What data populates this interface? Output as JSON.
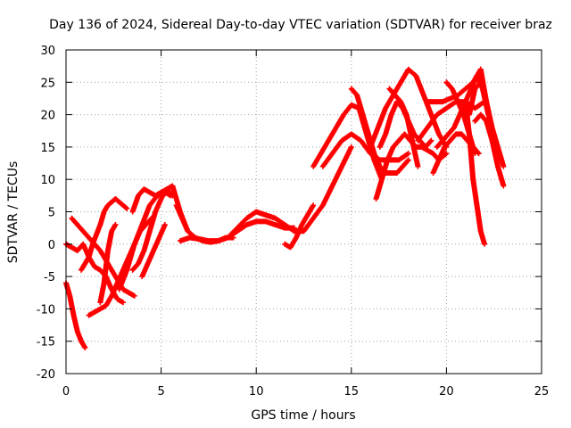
{
  "chart_data": {
    "type": "scatter",
    "title": "Day 136 of 2024, Sidereal Day-to-day VTEC variation (SDTVAR) for receiver braz",
    "xlabel": "GPS time / hours",
    "ylabel": "SDTVAR / TECUs",
    "xlim": [
      0,
      25
    ],
    "ylim": [
      -20,
      30
    ],
    "x_ticks": [
      0,
      5,
      10,
      15,
      20,
      25
    ],
    "y_ticks": [
      -20,
      -15,
      -10,
      -5,
      0,
      5,
      10,
      15,
      20,
      25,
      30
    ],
    "grid": true,
    "marker": "+",
    "color": "#ff0000",
    "series": [
      {
        "name": "s1",
        "x": [
          0,
          0.2,
          0.4,
          0.6,
          0.8,
          1.0
        ],
        "y": [
          -6,
          -8,
          -11,
          -13.5,
          -15,
          -16
        ]
      },
      {
        "name": "s2",
        "x": [
          0,
          0.3,
          0.6,
          0.9,
          1.2,
          1.5,
          1.8,
          2.1,
          2.4,
          2.7,
          3.0
        ],
        "y": [
          0,
          -0.5,
          -1,
          0,
          -2,
          -3.5,
          -4,
          -5,
          -7,
          -8.5,
          -9
        ]
      },
      {
        "name": "s3",
        "x": [
          0.3,
          0.6,
          0.9,
          1.2,
          1.5,
          1.8,
          2.1,
          2.4,
          2.7,
          3.0,
          3.3,
          3.6
        ],
        "y": [
          4,
          3,
          2,
          1,
          0,
          -1,
          -2.5,
          -4,
          -5.5,
          -7,
          -7.5,
          -8
        ]
      },
      {
        "name": "s4",
        "x": [
          0.8,
          1.0,
          1.2,
          1.4,
          1.6,
          1.8,
          2.0,
          2.2,
          2.4,
          2.6,
          2.8,
          3.0,
          3.2
        ],
        "y": [
          -4,
          -3,
          -2,
          0,
          1.5,
          3,
          5,
          6,
          6.5,
          7,
          6.5,
          6,
          5.5
        ]
      },
      {
        "name": "s5",
        "x": [
          1.2,
          1.5,
          1.8,
          2.1,
          2.4,
          2.7,
          3.0,
          3.3,
          3.6,
          3.9,
          4.2,
          4.5
        ],
        "y": [
          -11,
          -10.5,
          -10,
          -9.5,
          -8,
          -6,
          -4,
          -2,
          0,
          2,
          3,
          4
        ]
      },
      {
        "name": "s6",
        "x": [
          1.8,
          2.0,
          2.2,
          2.4,
          2.6
        ],
        "y": [
          -9,
          -6,
          -1,
          2,
          3
        ]
      },
      {
        "name": "s7",
        "x": [
          2.8,
          3.2,
          3.6,
          4.0,
          4.4,
          4.8,
          5.2,
          5.5
        ],
        "y": [
          -7,
          -4,
          0,
          3,
          6,
          7.5,
          8,
          7.5
        ]
      },
      {
        "name": "s8",
        "x": [
          3.5,
          3.8,
          4.1,
          4.4,
          4.7,
          5.0,
          5.3,
          5.6,
          6.0,
          6.4
        ],
        "y": [
          -4,
          -3,
          -1,
          2,
          5,
          7,
          8.5,
          9,
          5,
          2
        ]
      },
      {
        "name": "s9",
        "x": [
          3.5,
          3.8,
          4.1,
          4.4,
          4.7,
          5.0,
          5.3,
          5.6
        ],
        "y": [
          5,
          7.5,
          8.5,
          8,
          7.5,
          8,
          8.5,
          7.5
        ]
      },
      {
        "name": "s10",
        "x": [
          4.0,
          4.3,
          4.6,
          4.9,
          5.2
        ],
        "y": [
          -5,
          -3,
          -1,
          1,
          3
        ]
      },
      {
        "name": "s11",
        "x": [
          5.8,
          6.1,
          6.4,
          6.8,
          7.2,
          7.6,
          8.0,
          8.4,
          8.8
        ],
        "y": [
          6,
          4,
          2,
          1,
          0.5,
          0.3,
          0.5,
          1,
          1
        ]
      },
      {
        "name": "s12",
        "x": [
          6.0,
          6.5,
          7.0,
          7.5,
          8.0,
          8.5,
          9.0,
          9.5,
          10.0,
          10.5,
          11.0,
          11.5,
          12.0
        ],
        "y": [
          0.5,
          1,
          0.8,
          0.5,
          0.5,
          1,
          2,
          3,
          3.5,
          3.5,
          3,
          2.5,
          2.5
        ]
      },
      {
        "name": "s13",
        "x": [
          8.5,
          9.0,
          9.5,
          10.0,
          10.5,
          11.0,
          11.5,
          12.0,
          12.5,
          13.0,
          13.5,
          14.0,
          14.5,
          15.0
        ],
        "y": [
          1,
          2.5,
          4,
          5,
          4.5,
          4,
          3,
          2,
          2,
          4,
          6,
          9,
          12,
          15
        ]
      },
      {
        "name": "s14",
        "x": [
          11.5,
          11.8,
          12.1,
          12.4,
          12.7,
          13.0
        ],
        "y": [
          0,
          -0.5,
          1,
          3,
          4.5,
          6
        ]
      },
      {
        "name": "s15",
        "x": [
          13.0,
          13.4,
          13.8,
          14.2,
          14.6,
          15.0,
          15.4,
          15.8,
          16.2,
          16.6
        ],
        "y": [
          12,
          14,
          16,
          18,
          20,
          21.5,
          21,
          17,
          13,
          10
        ]
      },
      {
        "name": "s16",
        "x": [
          13.5,
          14.0,
          14.5,
          15.0,
          15.5,
          16.0,
          16.5,
          17.0,
          17.5,
          18.0
        ],
        "y": [
          12,
          14,
          16,
          17,
          16,
          14,
          13,
          13,
          13,
          14
        ]
      },
      {
        "name": "s17",
        "x": [
          15.0,
          15.3,
          15.6,
          15.9,
          16.2,
          16.5,
          16.8,
          17.1,
          17.4,
          17.7,
          18.0
        ],
        "y": [
          24,
          23,
          20,
          17,
          14,
          12,
          11,
          11,
          11,
          12,
          13
        ]
      },
      {
        "name": "s18",
        "x": [
          16.3,
          16.6,
          16.9,
          17.2,
          17.5,
          17.8,
          18.1,
          18.4,
          18.7,
          19.0,
          19.3,
          19.6,
          20.0
        ],
        "y": [
          7,
          10,
          13,
          15,
          16,
          17,
          16,
          15,
          15,
          14.5,
          14,
          13,
          14
        ]
      },
      {
        "name": "s19",
        "x": [
          16.0,
          16.4,
          16.8,
          17.2,
          17.6,
          18.0,
          18.4,
          18.8,
          19.2,
          19.6,
          20.0
        ],
        "y": [
          15,
          18,
          21,
          23,
          25,
          27,
          26,
          23,
          20,
          17,
          15
        ]
      },
      {
        "name": "s20",
        "x": [
          17.0,
          17.3,
          17.6,
          17.9,
          18.2,
          18.5
        ],
        "y": [
          24,
          23,
          22,
          20,
          16,
          12
        ]
      },
      {
        "name": "s21",
        "x": [
          16.5,
          16.8,
          17.1,
          17.4,
          17.7,
          18.0,
          18.3,
          18.6,
          18.9,
          19.2
        ],
        "y": [
          15,
          17,
          20,
          22,
          21,
          19,
          17,
          16,
          15,
          16
        ]
      },
      {
        "name": "s22",
        "x": [
          18.5,
          19.0,
          19.5,
          20.0,
          20.5,
          21.0,
          21.5,
          22.0
        ],
        "y": [
          16,
          18,
          20,
          21,
          22,
          22,
          21,
          22
        ]
      },
      {
        "name": "s23",
        "x": [
          19.0,
          19.4,
          19.8,
          20.2,
          20.6,
          21.0,
          21.4,
          21.8
        ],
        "y": [
          22,
          22,
          22,
          22.5,
          23,
          24,
          25,
          27
        ]
      },
      {
        "name": "s24",
        "x": [
          19.3,
          19.6,
          19.9,
          20.2,
          20.5,
          20.8,
          21.1,
          21.4,
          21.7
        ],
        "y": [
          11,
          13,
          15,
          16,
          17,
          17,
          16,
          15,
          14
        ]
      },
      {
        "name": "s25",
        "x": [
          19.5,
          19.8,
          20.1,
          20.4,
          20.7,
          21.0,
          21.3,
          21.6,
          21.9,
          22.2
        ],
        "y": [
          15,
          16,
          17,
          18,
          20,
          22,
          24,
          26,
          24,
          20
        ]
      },
      {
        "name": "s26",
        "x": [
          20.0,
          20.3,
          20.6,
          20.9,
          21.2,
          21.5
        ],
        "y": [
          25,
          24,
          22,
          20,
          17,
          14
        ]
      },
      {
        "name": "s27",
        "x": [
          21.0,
          21.2,
          21.4,
          21.6,
          21.8,
          22.0
        ],
        "y": [
          22,
          17,
          10,
          6,
          2,
          0
        ]
      },
      {
        "name": "s28",
        "x": [
          21.2,
          21.5,
          21.8,
          22.1,
          22.4,
          22.7,
          23.0
        ],
        "y": [
          20,
          24,
          25,
          22,
          18,
          15,
          12
        ]
      },
      {
        "name": "s29",
        "x": [
          21.5,
          21.8,
          22.1,
          22.4,
          22.7,
          23.0
        ],
        "y": [
          19,
          20,
          19,
          16,
          12,
          9
        ]
      },
      {
        "name": "s30",
        "x": [
          21.8,
          22.1,
          22.4,
          22.7
        ],
        "y": [
          27,
          22,
          17,
          13
        ]
      }
    ]
  }
}
